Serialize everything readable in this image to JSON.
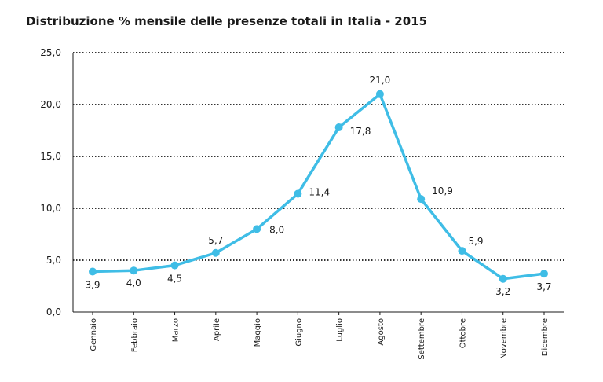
{
  "chart_data": {
    "type": "line",
    "title": "Distribuzione % mensile delle presenze totali in Italia - 2015",
    "xlabel": "",
    "ylabel": "",
    "categories": [
      "Gennaio",
      "Febbraio",
      "Marzo",
      "Aprile",
      "Maggio",
      "Giugno",
      "Luglio",
      "Agosto",
      "Settembre",
      "Ottobre",
      "Novembre",
      "Dicembre"
    ],
    "series": [
      {
        "values": [
          3.9,
          4.0,
          4.5,
          5.7,
          8.0,
          11.4,
          17.8,
          21.0,
          10.9,
          5.9,
          3.2,
          3.7
        ],
        "labels": [
          "3,9",
          "4,0",
          "4,5",
          "5,7",
          "8,0",
          "11,4",
          "17,8",
          "21,0",
          "10,9",
          "5,9",
          "3,2",
          "3,7"
        ]
      }
    ],
    "ylim": [
      0,
      25
    ],
    "yticks": [
      0,
      5,
      10,
      15,
      20,
      25
    ],
    "ytick_labels": [
      "0,0",
      "5,0",
      "10,0",
      "15,0",
      "20,0",
      "25,0"
    ],
    "grid": "horizontal dotted",
    "legend": "none",
    "line_color": "#3fbde6",
    "grid_color": "#333333"
  }
}
